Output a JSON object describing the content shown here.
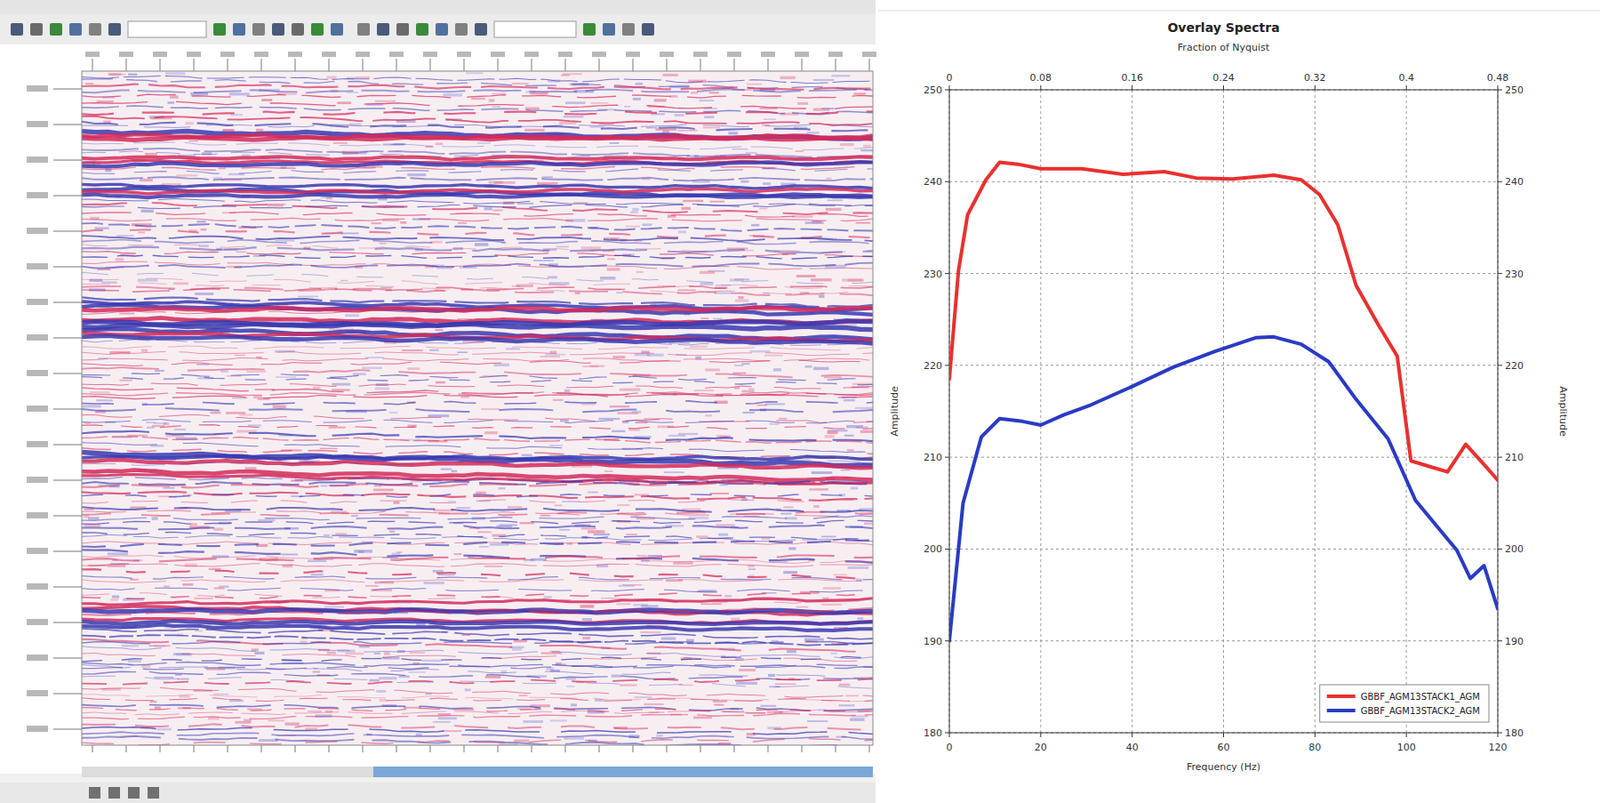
{
  "chart_data": {
    "type": "line",
    "title": "Overlay Spectra",
    "x2_label": "Fraction of Nyquist",
    "x_label": "Frequency (Hz)",
    "y_label": "Amplitude",
    "y2_label": "Amplitude",
    "xlim": [
      0,
      120
    ],
    "xticks": [
      0,
      20,
      40,
      60,
      80,
      100,
      120
    ],
    "x2lim": [
      0,
      0.48
    ],
    "x2ticks": [
      0,
      0.08,
      0.16,
      0.24,
      0.32,
      0.4,
      0.48
    ],
    "ylim": [
      180,
      250
    ],
    "yticks": [
      180,
      190,
      200,
      210,
      220,
      230,
      240,
      250
    ],
    "y2lim": [
      180,
      250
    ],
    "y2ticks": [
      180,
      190,
      200,
      210,
      220,
      230,
      240,
      250
    ],
    "grid": true,
    "legend": "lower right",
    "series": [
      {
        "name": "GBBF_AGM13STACK1_AGM",
        "color": "#e8312f",
        "x": [
          0,
          2,
          4,
          8,
          11,
          15,
          20,
          29,
          38,
          47,
          54,
          62,
          71,
          77,
          81,
          85,
          89,
          94,
          98,
          101,
          105,
          109,
          113,
          117,
          120
        ],
        "values": [
          218.5,
          230.3,
          236.4,
          240.2,
          242.1,
          241.9,
          241.4,
          241.4,
          240.8,
          241.1,
          240.4,
          240.3,
          240.7,
          240.2,
          238.6,
          235.3,
          228.7,
          224.3,
          221,
          209.6,
          209,
          208.4,
          211.4,
          209.2,
          207.5
        ]
      },
      {
        "name": "GBBF_AGM13STACK2_AGM",
        "color": "#2a3bc4",
        "x": [
          0,
          3,
          7,
          11,
          16,
          20,
          25,
          31,
          40,
          49,
          58,
          67,
          71,
          77,
          83,
          89,
          96,
          102,
          107,
          111,
          114,
          117,
          120
        ],
        "values": [
          190,
          205,
          212.2,
          214.2,
          213.9,
          213.5,
          214.6,
          215.7,
          217.7,
          219.8,
          221.5,
          223,
          223.1,
          222.3,
          220.4,
          216.3,
          212,
          205.3,
          202.3,
          199.9,
          196.8,
          198.2,
          193.5
        ]
      }
    ]
  }
}
